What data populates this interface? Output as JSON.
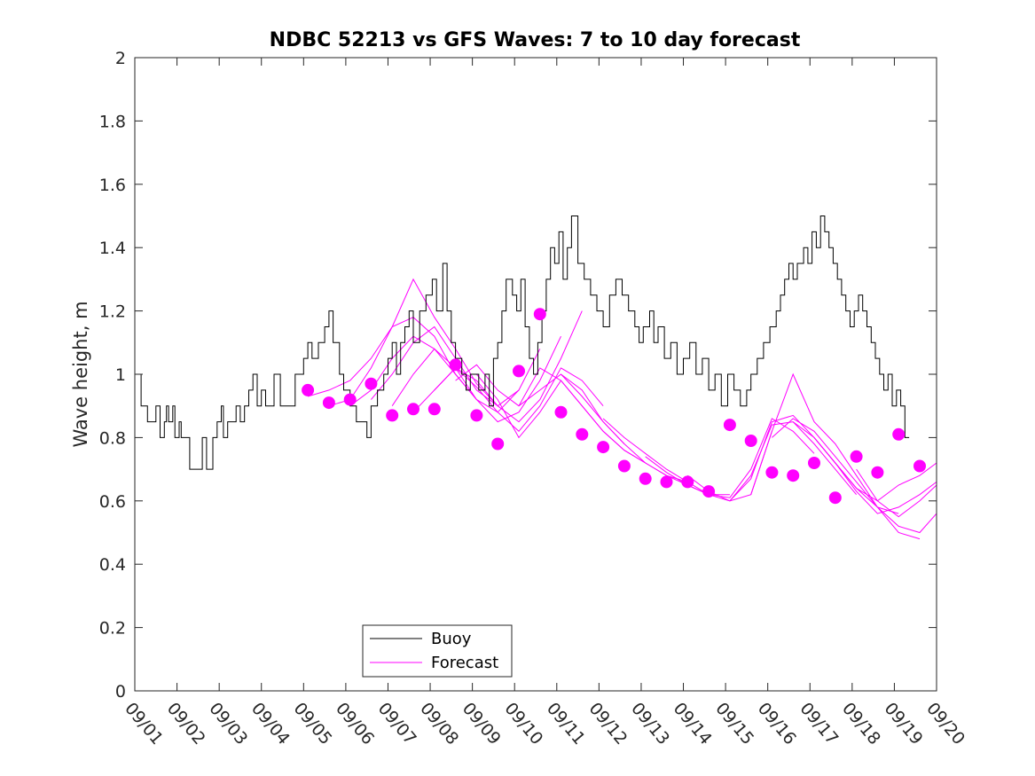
{
  "chart_data": {
    "type": "line",
    "title": "NDBC 52213 vs GFS Waves: 7 to 10 day forecast",
    "xlabel": "",
    "ylabel": "Wave height, m",
    "xlim": [
      0,
      19
    ],
    "ylim": [
      0,
      2
    ],
    "yticks": [
      0,
      0.2,
      0.4,
      0.6,
      0.8,
      1,
      1.2,
      1.4,
      1.6,
      1.8,
      2
    ],
    "ytick_labels": [
      "0",
      "0.2",
      "0.4",
      "0.6",
      "0.8",
      "1",
      "1.2",
      "1.4",
      "1.6",
      "1.8",
      "2"
    ],
    "xticks": [
      0,
      1,
      2,
      3,
      4,
      5,
      6,
      7,
      8,
      9,
      10,
      11,
      12,
      13,
      14,
      15,
      16,
      17,
      18,
      19
    ],
    "xtick_labels": [
      "09/01",
      "09/02",
      "09/03",
      "09/04",
      "09/05",
      "09/06",
      "09/07",
      "09/08",
      "09/09",
      "09/10",
      "09/11",
      "09/12",
      "09/13",
      "09/14",
      "09/15",
      "09/16",
      "09/17",
      "09/18",
      "09/19",
      "09/20"
    ],
    "legend": {
      "location": "bottom-left",
      "entries": [
        "Buoy",
        "Forecast"
      ]
    },
    "colors": {
      "buoy": "#000000",
      "forecast": "#ff00ff",
      "axes": "#262626"
    },
    "series": [
      {
        "name": "Buoy",
        "type": "step",
        "x": [
          0,
          0.15,
          0.3,
          0.5,
          0.6,
          0.7,
          0.75,
          0.8,
          0.9,
          0.95,
          1.05,
          1.1,
          1.15,
          1.3,
          1.6,
          1.7,
          1.85,
          1.95,
          2.05,
          2.1,
          2.2,
          2.4,
          2.5,
          2.6,
          2.7,
          2.8,
          2.9,
          3.0,
          3.1,
          3.3,
          3.45,
          3.6,
          3.8,
          4.0,
          4.1,
          4.2,
          4.35,
          4.5,
          4.6,
          4.7,
          4.85,
          4.95,
          5.1,
          5.25,
          5.45,
          5.5,
          5.6,
          5.75,
          5.9,
          6.0,
          6.1,
          6.2,
          6.3,
          6.4,
          6.5,
          6.6,
          6.75,
          6.9,
          7.05,
          7.15,
          7.3,
          7.4,
          7.5,
          7.6,
          7.75,
          7.85,
          7.95,
          8.05,
          8.15,
          8.3,
          8.4,
          8.5,
          8.6,
          8.7,
          8.8,
          8.95,
          9.05,
          9.15,
          9.25,
          9.35,
          9.45,
          9.55,
          9.65,
          9.75,
          9.85,
          9.95,
          10.05,
          10.15,
          10.25,
          10.35,
          10.5,
          10.65,
          10.8,
          10.95,
          11.1,
          11.25,
          11.4,
          11.55,
          11.7,
          11.85,
          11.95,
          12.05,
          12.2,
          12.3,
          12.4,
          12.55,
          12.7,
          12.85,
          13.0,
          13.15,
          13.3,
          13.45,
          13.6,
          13.75,
          13.9,
          14.05,
          14.2,
          14.35,
          14.5,
          14.6,
          14.75,
          14.9,
          15.05,
          15.2,
          15.3,
          15.4,
          15.5,
          15.6,
          15.7,
          15.85,
          15.95,
          16.05,
          16.15,
          16.25,
          16.35,
          16.45,
          16.55,
          16.65,
          16.75,
          16.85,
          16.95,
          17.05,
          17.15,
          17.25,
          17.35,
          17.45,
          17.55,
          17.65,
          17.75,
          17.85,
          17.95,
          18.05,
          18.15,
          18.25
        ],
        "values": [
          1.0,
          0.9,
          0.85,
          0.9,
          0.8,
          0.85,
          0.9,
          0.85,
          0.9,
          0.8,
          0.85,
          0.8,
          0.8,
          0.7,
          0.8,
          0.7,
          0.8,
          0.85,
          0.9,
          0.8,
          0.85,
          0.9,
          0.85,
          0.9,
          0.95,
          1.0,
          0.9,
          0.95,
          0.9,
          1.0,
          0.9,
          0.9,
          1.0,
          1.05,
          1.1,
          1.05,
          1.1,
          1.15,
          1.2,
          1.1,
          1.0,
          0.95,
          0.9,
          0.85,
          0.85,
          0.8,
          0.9,
          0.95,
          1.0,
          1.05,
          1.1,
          1.0,
          1.1,
          1.15,
          1.2,
          1.1,
          1.2,
          1.25,
          1.3,
          1.2,
          1.35,
          1.2,
          1.1,
          1.05,
          1.0,
          0.95,
          1.0,
          1.0,
          0.95,
          1.0,
          0.9,
          1.05,
          1.1,
          1.2,
          1.3,
          1.25,
          1.2,
          1.3,
          1.15,
          1.05,
          1.0,
          1.1,
          1.2,
          1.3,
          1.4,
          1.35,
          1.45,
          1.3,
          1.4,
          1.5,
          1.35,
          1.3,
          1.25,
          1.2,
          1.15,
          1.25,
          1.3,
          1.25,
          1.2,
          1.15,
          1.1,
          1.15,
          1.2,
          1.1,
          1.15,
          1.05,
          1.1,
          1.0,
          1.05,
          1.1,
          1.0,
          1.05,
          0.95,
          1.0,
          0.9,
          1.0,
          0.95,
          0.9,
          0.95,
          1.0,
          1.05,
          1.1,
          1.15,
          1.2,
          1.25,
          1.3,
          1.35,
          1.3,
          1.35,
          1.4,
          1.35,
          1.45,
          1.4,
          1.5,
          1.45,
          1.4,
          1.35,
          1.3,
          1.25,
          1.2,
          1.15,
          1.2,
          1.25,
          1.2,
          1.15,
          1.1,
          1.05,
          1.0,
          0.95,
          1.0,
          0.9,
          0.95,
          0.9,
          0.8
        ]
      },
      {
        "name": "Forecast",
        "runs": [
          {
            "x": [
              4.1,
              4.6,
              5.1,
              5.6,
              6.1,
              6.6,
              7.1,
              7.6,
              8.1
            ],
            "values": [
              0.93,
              0.95,
              0.98,
              1.05,
              1.15,
              1.18,
              1.12,
              1.0,
              0.92
            ]
          },
          {
            "x": [
              4.6,
              5.1,
              5.6,
              6.1,
              6.6,
              7.1,
              7.6,
              8.1,
              8.6
            ],
            "values": [
              0.9,
              0.92,
              1.02,
              1.15,
              1.3,
              1.18,
              1.08,
              0.97,
              0.9
            ]
          },
          {
            "x": [
              5.1,
              5.6,
              6.1,
              6.6,
              7.1,
              7.6,
              8.1,
              8.6,
              9.1
            ],
            "values": [
              0.9,
              0.95,
              1.05,
              1.12,
              1.08,
              1.0,
              0.92,
              0.88,
              0.95
            ]
          },
          {
            "x": [
              5.6,
              6.1,
              6.6,
              7.1,
              7.6,
              8.1,
              8.6,
              9.1,
              9.6
            ],
            "values": [
              0.92,
              1.0,
              1.1,
              1.15,
              1.05,
              0.95,
              0.9,
              0.95,
              1.08
            ]
          },
          {
            "x": [
              6.1,
              6.6,
              7.1,
              7.6,
              8.1,
              8.6,
              9.1,
              9.6,
              10.1
            ],
            "values": [
              0.9,
              1.0,
              1.08,
              1.02,
              0.92,
              0.85,
              0.88,
              0.98,
              1.12
            ]
          },
          {
            "x": [
              6.6,
              7.1,
              7.6,
              8.1,
              8.6,
              9.1,
              9.6,
              10.1,
              10.6
            ],
            "values": [
              0.88,
              0.95,
              1.02,
              0.98,
              0.9,
              0.85,
              0.92,
              1.05,
              1.2
            ]
          },
          {
            "x": [
              7.1,
              7.6,
              8.1,
              8.6,
              9.1,
              9.6,
              10.1,
              10.6,
              11.1
            ],
            "values": [
              0.95,
              1.02,
              0.96,
              0.88,
              0.82,
              0.9,
              1.02,
              0.98,
              0.9
            ]
          },
          {
            "x": [
              7.6,
              8.1,
              8.6,
              9.1,
              9.6,
              10.1,
              10.6,
              11.1,
              11.6
            ],
            "values": [
              0.98,
              1.03,
              0.95,
              0.9,
              0.95,
              1.0,
              0.95,
              0.85,
              0.78
            ]
          },
          {
            "x": [
              8.1,
              8.6,
              9.1,
              9.6,
              10.1,
              10.6,
              11.1,
              11.6,
              12.1
            ],
            "values": [
              1.0,
              0.92,
              0.8,
              0.88,
              0.98,
              0.9,
              0.82,
              0.76,
              0.72
            ]
          },
          {
            "x": [
              9.1,
              9.6,
              10.1,
              10.6,
              11.1,
              11.6,
              12.1,
              12.6,
              13.1
            ],
            "values": [
              0.9,
              1.02,
              0.98,
              0.9,
              0.82,
              0.76,
              0.72,
              0.68,
              0.66
            ]
          },
          {
            "x": [
              10.1,
              10.6,
              11.1,
              11.6,
              12.1,
              12.6,
              13.1,
              13.6,
              14.1
            ],
            "values": [
              1.0,
              0.93,
              0.85,
              0.78,
              0.72,
              0.68,
              0.65,
              0.62,
              0.62
            ]
          },
          {
            "x": [
              11.1,
              11.6,
              12.1,
              12.6,
              13.1,
              13.6,
              14.1,
              14.6,
              15.1
            ],
            "values": [
              0.86,
              0.8,
              0.75,
              0.7,
              0.66,
              0.62,
              0.6,
              0.62,
              0.82
            ]
          },
          {
            "x": [
              12.1,
              12.6,
              13.1,
              13.6,
              14.1,
              14.6,
              15.1,
              15.6,
              16.1
            ],
            "values": [
              0.74,
              0.69,
              0.65,
              0.62,
              0.61,
              0.7,
              0.86,
              0.82,
              0.75
            ]
          },
          {
            "x": [
              13.1,
              13.6,
              14.1,
              14.6,
              15.1,
              15.6,
              16.1,
              16.6,
              17.1
            ],
            "values": [
              0.68,
              0.63,
              0.6,
              0.68,
              0.84,
              0.85,
              0.78,
              0.7,
              0.62
            ]
          },
          {
            "x": [
              14.1,
              14.6,
              15.1,
              15.6,
              16.1,
              16.6,
              17.1,
              17.6,
              18.1
            ],
            "values": [
              0.6,
              0.67,
              0.85,
              0.87,
              0.8,
              0.72,
              0.64,
              0.58,
              0.56
            ]
          },
          {
            "x": [
              14.6,
              15.1,
              15.6,
              16.1,
              16.6,
              17.1,
              17.6,
              18.1,
              18.6
            ],
            "values": [
              0.62,
              0.82,
              1.0,
              0.85,
              0.78,
              0.68,
              0.58,
              0.5,
              0.48
            ]
          },
          {
            "x": [
              15.1,
              15.6,
              16.1,
              16.6,
              17.1,
              17.6,
              18.1,
              18.6,
              19.0
            ],
            "values": [
              0.8,
              0.86,
              0.82,
              0.74,
              0.66,
              0.58,
              0.52,
              0.5,
              0.56
            ]
          },
          {
            "x": [
              15.6,
              16.1,
              16.6,
              17.1,
              17.6,
              18.1,
              18.6,
              19.0
            ],
            "values": [
              0.85,
              0.8,
              0.72,
              0.64,
              0.6,
              0.65,
              0.68,
              0.72
            ]
          },
          {
            "x": [
              16.1,
              16.6,
              17.1,
              17.6,
              18.1,
              18.6,
              19.0
            ],
            "values": [
              0.8,
              0.72,
              0.63,
              0.56,
              0.58,
              0.62,
              0.66
            ]
          },
          {
            "x": [
              17.1,
              17.6,
              18.1,
              18.6,
              19.0
            ],
            "values": [
              0.7,
              0.6,
              0.55,
              0.6,
              0.65
            ]
          }
        ],
        "markers": {
          "x": [
            4.1,
            4.6,
            5.1,
            5.6,
            6.1,
            6.6,
            7.1,
            7.6,
            8.1,
            8.6,
            9.1,
            9.6,
            10.1,
            10.6,
            11.1,
            11.6,
            12.1,
            12.6,
            13.1,
            13.6,
            14.1,
            14.6,
            15.1,
            15.6,
            16.1,
            16.6,
            17.1,
            17.6,
            18.1,
            18.6
          ],
          "values": [
            0.95,
            0.91,
            0.92,
            0.97,
            0.87,
            0.89,
            0.89,
            1.03,
            0.87,
            0.78,
            1.01,
            1.19,
            0.88,
            0.81,
            0.77,
            0.71,
            0.67,
            0.66,
            0.66,
            0.63,
            0.84,
            0.79,
            0.69,
            0.68,
            0.72,
            0.61,
            0.74,
            0.69,
            0.81,
            0.71
          ]
        }
      }
    ]
  }
}
